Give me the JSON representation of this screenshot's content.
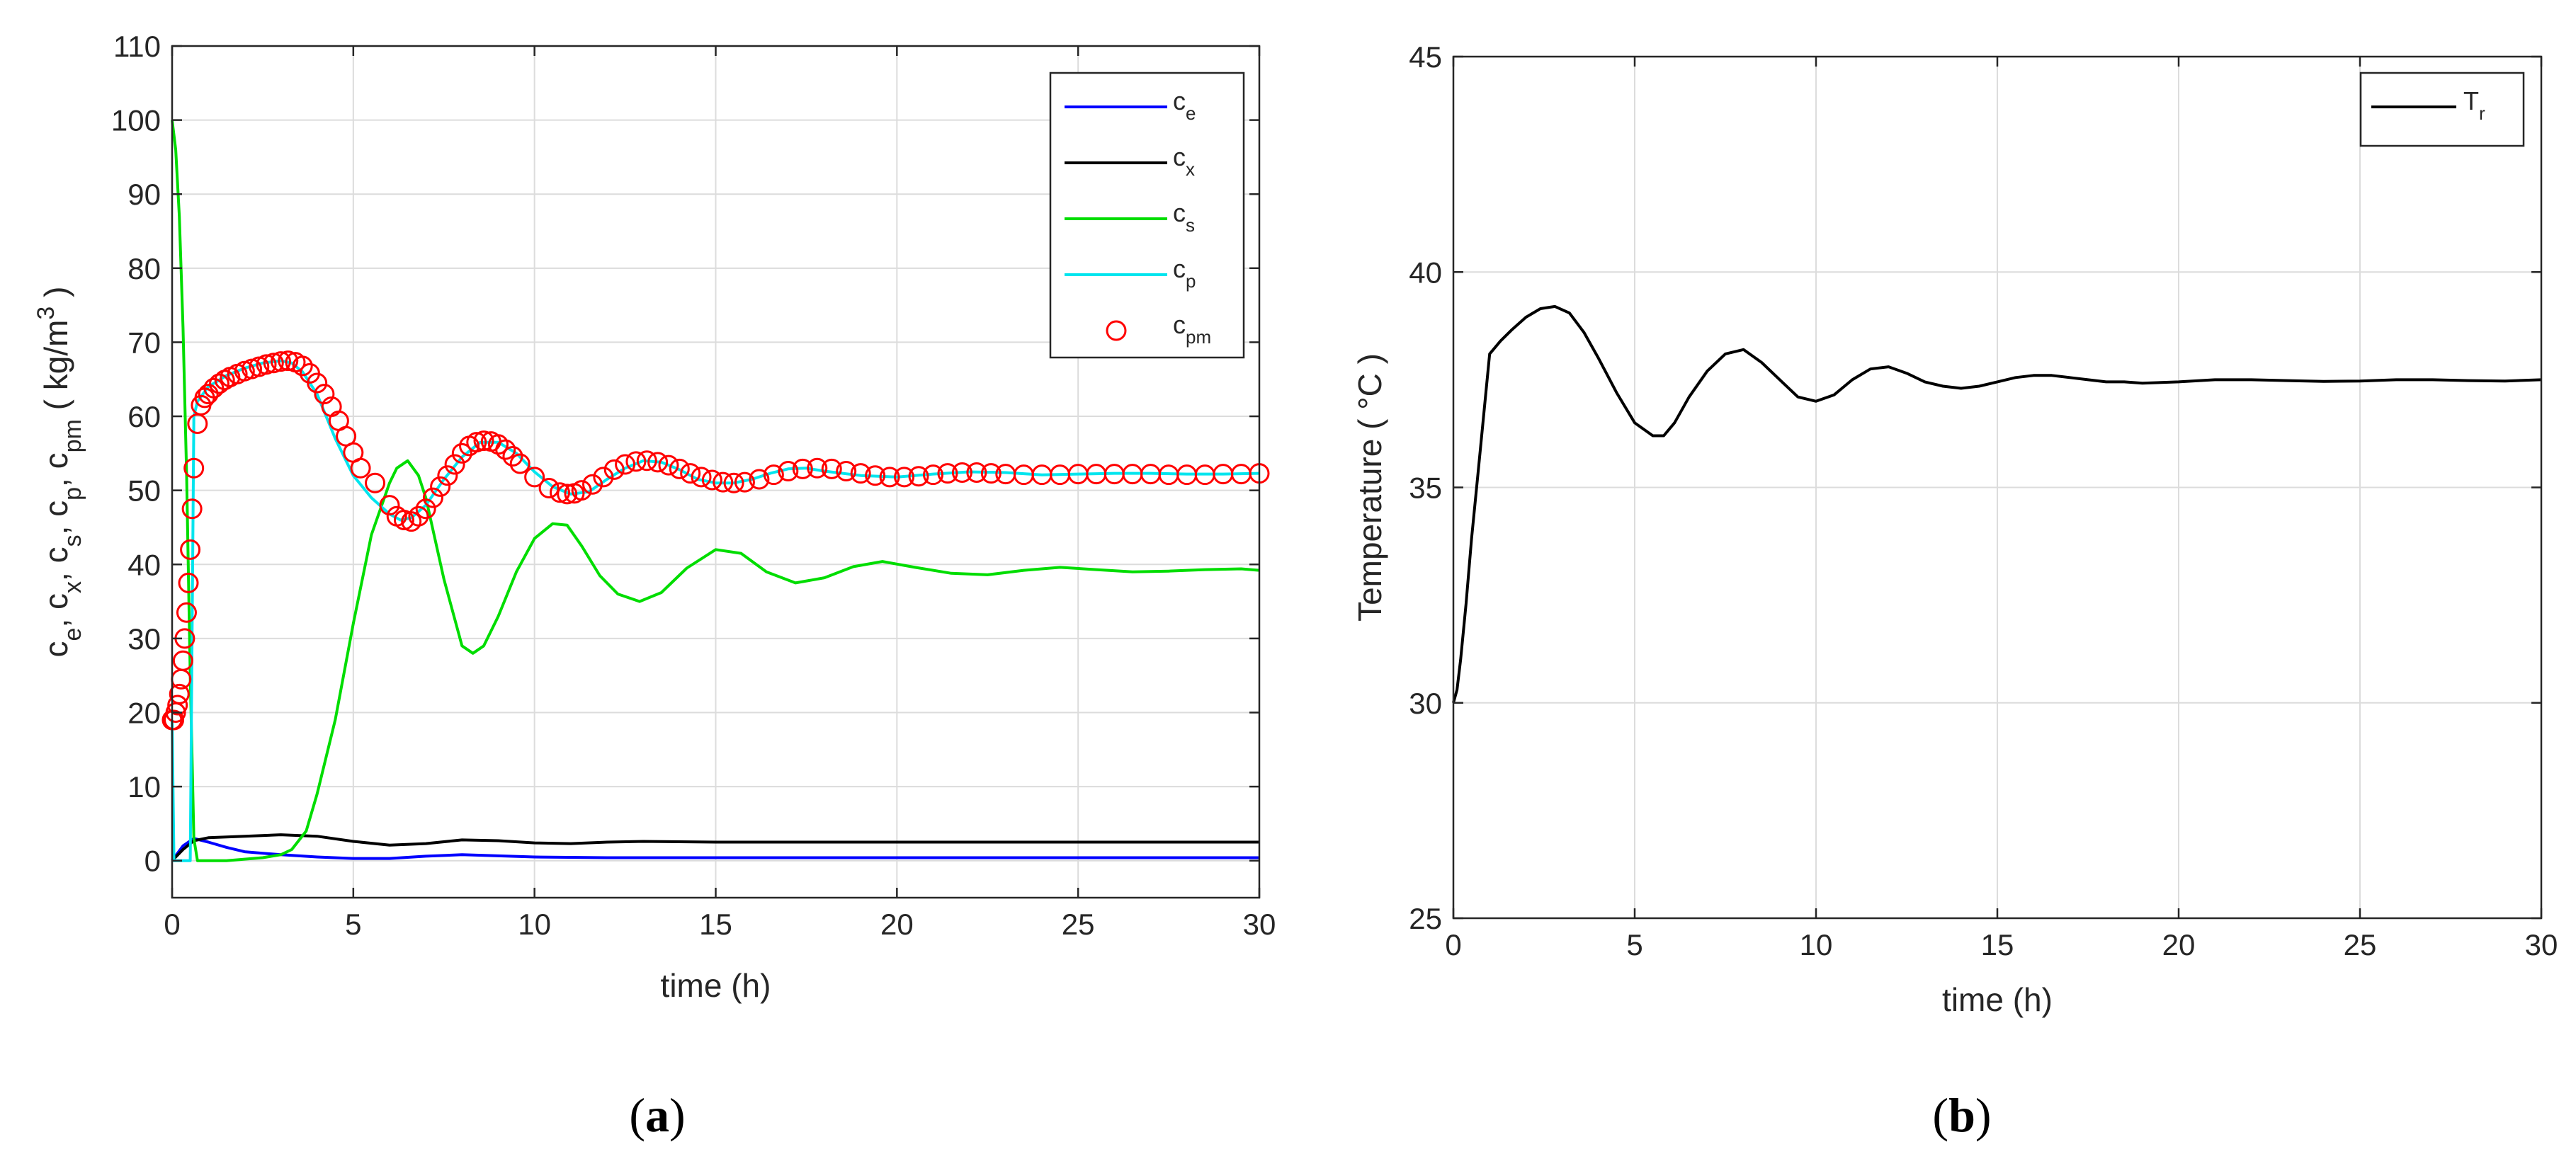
{
  "chart_data": [
    {
      "type": "line",
      "panel_label": "a",
      "xlabel": "time (h)",
      "ylabel": "c_e, c_x, c_s, c_p, c_pm ( kg/m^3 )",
      "xlim": [
        0,
        30
      ],
      "ylim": [
        -5,
        110
      ],
      "xticks": [
        0,
        5,
        10,
        15,
        20,
        25,
        30
      ],
      "yticks": [
        0,
        10,
        20,
        30,
        40,
        50,
        60,
        70,
        80,
        90,
        100,
        110
      ],
      "grid": true,
      "legend_position": "top-right",
      "series": [
        {
          "name": "c",
          "subscript": "e",
          "color": "#0000ff",
          "style": "line",
          "x": [
            0,
            0.3,
            0.6,
            1,
            1.5,
            2,
            3,
            4,
            5,
            6,
            7,
            8,
            10,
            12,
            15,
            20,
            25,
            30
          ],
          "y": [
            0,
            2,
            3,
            2.5,
            1.8,
            1.2,
            0.8,
            0.5,
            0.3,
            0.3,
            0.6,
            0.8,
            0.5,
            0.4,
            0.4,
            0.4,
            0.4,
            0.4
          ]
        },
        {
          "name": "c",
          "subscript": "x",
          "color": "#000000",
          "style": "line",
          "x": [
            0,
            0.3,
            0.6,
            1,
            2,
            3,
            4,
            5,
            6,
            7,
            8,
            9,
            10,
            11,
            12,
            13,
            15,
            20,
            25,
            30
          ],
          "y": [
            0,
            1.5,
            2.7,
            3.1,
            3.3,
            3.5,
            3.3,
            2.6,
            2.1,
            2.3,
            2.8,
            2.7,
            2.4,
            2.3,
            2.5,
            2.6,
            2.5,
            2.5,
            2.5,
            2.5
          ]
        },
        {
          "name": "c",
          "subscript": "s",
          "color": "#00dd00",
          "style": "line",
          "x": [
            0,
            0.1,
            0.2,
            0.3,
            0.4,
            0.5,
            0.6,
            0.7,
            1,
            1.5,
            2,
            2.5,
            3,
            3.3,
            3.7,
            4,
            4.5,
            5,
            5.5,
            6,
            6.2,
            6.5,
            6.8,
            7,
            7.5,
            8,
            8.3,
            8.6,
            9,
            9.5,
            10,
            10.5,
            10.9,
            11.3,
            11.8,
            12.3,
            12.9,
            13.5,
            14.2,
            15,
            15.7,
            16.4,
            17.2,
            18,
            18.8,
            19.6,
            20.5,
            21.5,
            22.5,
            23.5,
            24.5,
            25.5,
            26.5,
            27.5,
            28.5,
            29.5,
            30
          ],
          "y": [
            100,
            96,
            87,
            72,
            52,
            25,
            3,
            0,
            0,
            0,
            0.2,
            0.4,
            0.8,
            1.5,
            4,
            9,
            19,
            32,
            44,
            51,
            53,
            54,
            52,
            49,
            38,
            29,
            28,
            29,
            33,
            39,
            43.5,
            45.5,
            45.3,
            42.5,
            38.5,
            36,
            35,
            36.2,
            39.5,
            42,
            41.5,
            39,
            37.5,
            38.2,
            39.7,
            40.4,
            39.6,
            38.8,
            38.6,
            39.2,
            39.6,
            39.3,
            39,
            39.1,
            39.3,
            39.4,
            39.2
          ]
        },
        {
          "name": "c",
          "subscript": "p",
          "color": "#00e5ee",
          "style": "line",
          "x": [
            0,
            0.05,
            0.12,
            0.2,
            0.3,
            0.4,
            0.5,
            0.6,
            0.7,
            1,
            1.5,
            2,
            2.5,
            3,
            3.3,
            3.6,
            4,
            4.5,
            5,
            5.5,
            6,
            6.3,
            6.6,
            7,
            7.5,
            8,
            8.5,
            9,
            9.5,
            10,
            10.5,
            11,
            11.5,
            12,
            12.5,
            13,
            13.5,
            14,
            14.5,
            15,
            15.5,
            16,
            16.5,
            17,
            17.5,
            18,
            19,
            20,
            21,
            22,
            23,
            24,
            25,
            26,
            27,
            28,
            29,
            30
          ],
          "y": [
            19,
            0,
            0,
            0,
            0,
            0,
            0,
            60,
            62,
            64,
            65.5,
            66.5,
            67.2,
            67.5,
            67.2,
            66,
            63,
            57,
            52,
            49,
            46.8,
            46,
            46.3,
            48,
            51.5,
            54.5,
            56.5,
            56.5,
            55,
            52.5,
            50.5,
            49.5,
            49.8,
            51.5,
            53,
            54,
            53.8,
            52.8,
            51.5,
            51,
            51,
            51.5,
            52.3,
            52.9,
            53,
            52.6,
            52,
            51.8,
            52.2,
            52.5,
            52.4,
            52.1,
            52.2,
            52.3,
            52.3,
            52.2,
            52.2,
            52.3
          ]
        },
        {
          "name": "c",
          "subscript": "pm",
          "color": "#ff0000",
          "style": "markers",
          "marker": "circle",
          "x": [
            0,
            0.05,
            0.1,
            0.15,
            0.2,
            0.25,
            0.3,
            0.35,
            0.4,
            0.45,
            0.5,
            0.55,
            0.6,
            0.7,
            0.8,
            0.9,
            1,
            1.15,
            1.3,
            1.45,
            1.6,
            1.8,
            2,
            2.2,
            2.4,
            2.6,
            2.8,
            3,
            3.2,
            3.4,
            3.6,
            3.8,
            4,
            4.2,
            4.4,
            4.6,
            4.8,
            5,
            5.2,
            5.6,
            6,
            6.2,
            6.4,
            6.6,
            6.8,
            7,
            7.2,
            7.4,
            7.6,
            7.8,
            8,
            8.2,
            8.4,
            8.6,
            8.8,
            9,
            9.2,
            9.4,
            9.6,
            10,
            10.4,
            10.7,
            10.9,
            11.1,
            11.3,
            11.6,
            11.9,
            12.2,
            12.5,
            12.8,
            13.1,
            13.4,
            13.7,
            14,
            14.3,
            14.6,
            14.9,
            15.2,
            15.5,
            15.8,
            16.2,
            16.6,
            17,
            17.4,
            17.8,
            18.2,
            18.6,
            19,
            19.4,
            19.8,
            20.2,
            20.6,
            21,
            21.4,
            21.8,
            22.2,
            22.6,
            23,
            23.5,
            24,
            24.5,
            25,
            25.5,
            26,
            26.5,
            27,
            27.5,
            28,
            28.5,
            29,
            29.5,
            30
          ],
          "y": [
            19,
            19,
            20,
            21,
            22.5,
            24.5,
            27,
            30,
            33.5,
            37.5,
            42,
            47.5,
            53,
            59,
            61.5,
            62.5,
            63,
            63.8,
            64.4,
            64.9,
            65.3,
            65.7,
            66.1,
            66.4,
            66.7,
            67,
            67.2,
            67.4,
            67.5,
            67.3,
            66.8,
            65.8,
            64.5,
            63,
            61.3,
            59.4,
            57.3,
            55.1,
            53,
            51,
            48,
            46.5,
            46,
            45.8,
            46.5,
            47.5,
            49,
            50.5,
            52,
            53.5,
            55,
            56,
            56.5,
            56.7,
            56.6,
            56.2,
            55.5,
            54.6,
            53.6,
            51.8,
            50.3,
            49.7,
            49.5,
            49.6,
            50,
            50.8,
            51.8,
            52.8,
            53.5,
            53.9,
            54,
            53.8,
            53.4,
            52.9,
            52.3,
            51.8,
            51.4,
            51.1,
            51,
            51.1,
            51.5,
            52.1,
            52.6,
            52.9,
            53,
            52.9,
            52.6,
            52.3,
            52,
            51.8,
            51.8,
            51.9,
            52.1,
            52.3,
            52.4,
            52.4,
            52.3,
            52.2,
            52.1,
            52.1,
            52.1,
            52.2,
            52.2,
            52.2,
            52.2,
            52.2,
            52.1,
            52.1,
            52.1,
            52.2,
            52.2,
            52.3
          ]
        }
      ]
    },
    {
      "type": "line",
      "panel_label": "b",
      "xlabel": "time (h)",
      "ylabel": "Temperature ( °C )",
      "xlim": [
        0,
        30
      ],
      "ylim": [
        25,
        45
      ],
      "xticks": [
        0,
        5,
        10,
        15,
        20,
        25,
        30
      ],
      "yticks": [
        25,
        30,
        35,
        40,
        45
      ],
      "grid": true,
      "legend_position": "top-right",
      "series": [
        {
          "name": "T",
          "subscript": "r",
          "color": "#000000",
          "style": "line",
          "x": [
            0,
            0.1,
            0.2,
            0.35,
            0.5,
            0.7,
            0.85,
            1,
            1.3,
            1.6,
            2,
            2.4,
            2.8,
            3.2,
            3.6,
            4,
            4.5,
            5,
            5.5,
            5.8,
            6.1,
            6.5,
            7,
            7.5,
            8,
            8.5,
            9,
            9.5,
            10,
            10.5,
            11,
            11.5,
            12,
            12.5,
            13,
            13.5,
            14,
            14.5,
            15,
            15.5,
            16,
            16.5,
            17,
            17.5,
            18,
            18.5,
            19,
            20,
            21,
            22,
            23,
            24,
            25,
            26,
            27,
            28,
            29,
            30
          ],
          "y": [
            30,
            30.3,
            31,
            32.3,
            33.8,
            35.5,
            36.8,
            38.1,
            38.4,
            38.65,
            38.95,
            39.15,
            39.2,
            39.05,
            38.6,
            38.0,
            37.2,
            36.5,
            36.2,
            36.2,
            36.5,
            37.1,
            37.7,
            38.1,
            38.2,
            37.9,
            37.5,
            37.1,
            37.0,
            37.15,
            37.5,
            37.75,
            37.8,
            37.65,
            37.45,
            37.35,
            37.3,
            37.35,
            37.45,
            37.55,
            37.6,
            37.6,
            37.55,
            37.5,
            37.45,
            37.45,
            37.42,
            37.45,
            37.5,
            37.5,
            37.48,
            37.46,
            37.47,
            37.5,
            37.5,
            37.48,
            37.47,
            37.5
          ]
        }
      ]
    }
  ]
}
